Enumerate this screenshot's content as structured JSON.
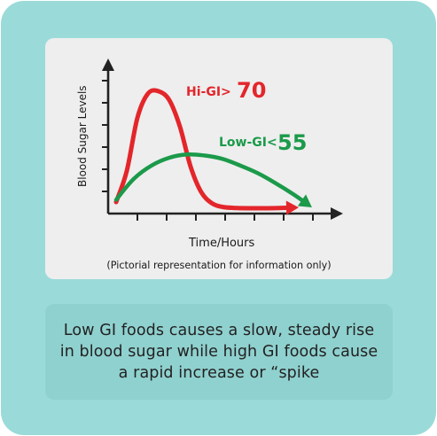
{
  "chart_data": {
    "type": "line",
    "ylabel": "Blood Sugar Levels",
    "xlabel": "Time/Hours",
    "note": "(Pictorial representation for information only)",
    "x_ticks": 7,
    "y_ticks": 6,
    "series": [
      {
        "name": "Hi-GI",
        "label_prefix": "Hi-GI>",
        "label_value": "70",
        "color": "#e3262b",
        "x": [
          0,
          0.3,
          0.6,
          0.9,
          1.2,
          1.5,
          1.8,
          2.1,
          2.4,
          2.7,
          3.0,
          3.4,
          3.8,
          4.2,
          4.6,
          5.0
        ],
        "y": [
          0.4,
          1.8,
          4.2,
          5.3,
          5.4,
          5.0,
          3.8,
          2.0,
          0.85,
          0.35,
          0.18,
          0.13,
          0.12,
          0.12,
          0.13,
          0.15
        ]
      },
      {
        "name": "Low-GI",
        "label_prefix": "Low-GI<",
        "label_value": "55",
        "color": "#1b9a4a",
        "x": [
          0,
          0.5,
          1.0,
          1.5,
          2.0,
          2.5,
          3.0,
          3.5,
          4.0,
          4.5,
          5.0,
          5.4
        ],
        "y": [
          0.5,
          1.45,
          2.05,
          2.4,
          2.55,
          2.5,
          2.35,
          2.05,
          1.7,
          1.25,
          0.75,
          0.3
        ]
      }
    ]
  },
  "caption": "Low GI foods causes a slow, steady rise in blood sugar while high GI foods cause a rapid increase or “spike"
}
